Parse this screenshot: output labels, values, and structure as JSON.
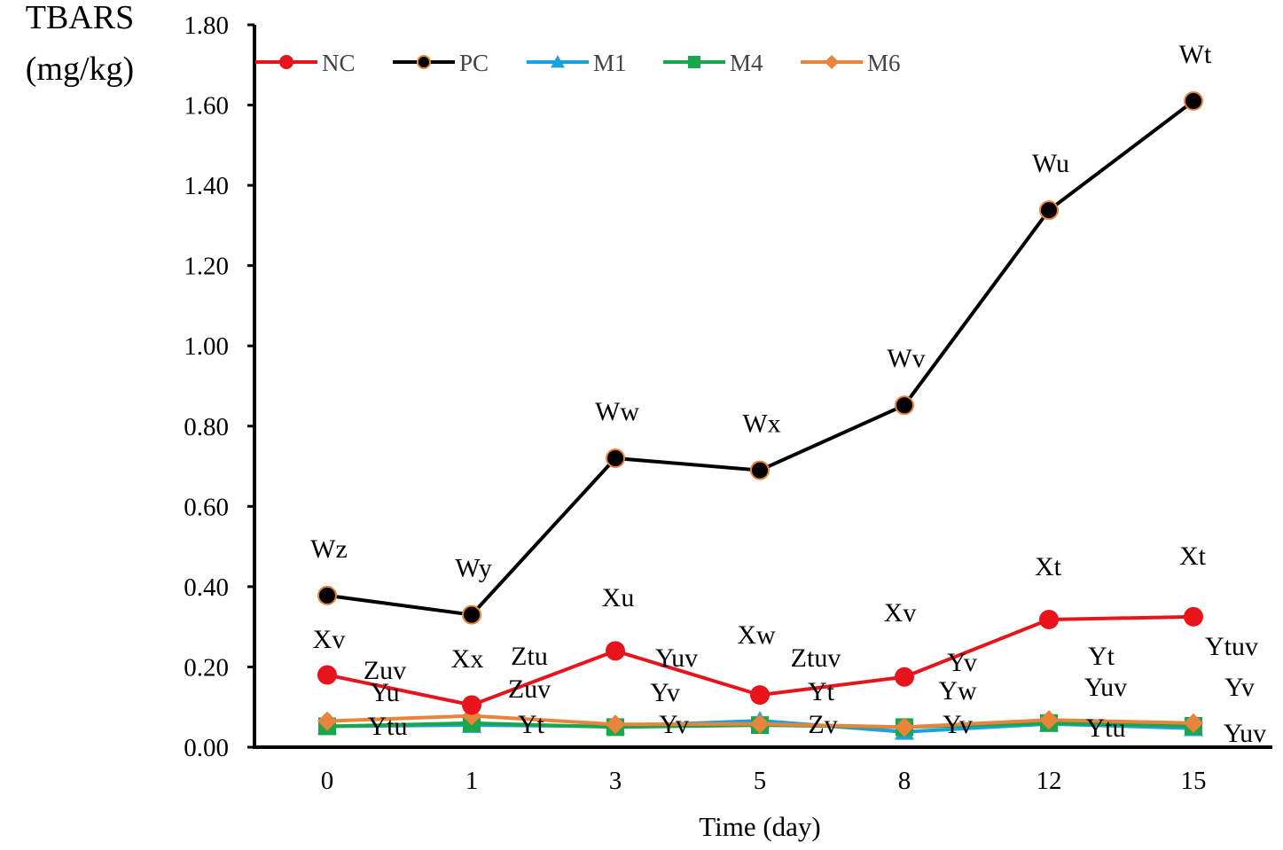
{
  "chart_data": {
    "type": "line",
    "ylabel_line1": "TBARS",
    "ylabel_line2": "(mg/kg)",
    "xlabel": "Time (day)",
    "categories": [
      "0",
      "1",
      "3",
      "5",
      "8",
      "12",
      "15"
    ],
    "ylim": [
      0,
      1.8
    ],
    "yticks": [
      "0.00",
      "0.20",
      "0.40",
      "0.60",
      "0.80",
      "1.00",
      "1.20",
      "1.40",
      "1.60",
      "1.80"
    ],
    "legend_position": "top-left",
    "series": [
      {
        "name": "NC",
        "color": "#e8141c",
        "marker": "circle",
        "values": [
          0.18,
          0.105,
          0.24,
          0.13,
          0.175,
          0.318,
          0.325
        ],
        "labels": [
          "Xv",
          "Xx",
          "Xu",
          "Xw",
          "Xv",
          "Xt",
          "Xt"
        ]
      },
      {
        "name": "PC",
        "color": "#000000",
        "marker": "circle-outlined",
        "values": [
          0.378,
          0.33,
          0.72,
          0.69,
          0.852,
          1.338,
          1.61
        ],
        "labels": [
          "Wz",
          "Wy",
          "Ww",
          "Wx",
          "Wv",
          "Wu",
          "Wt"
        ]
      },
      {
        "name": "M1",
        "color": "#1ba1e2",
        "marker": "triangle",
        "values": [
          0.052,
          0.055,
          0.052,
          0.066,
          0.038,
          0.058,
          0.047
        ],
        "labels": [
          "Ytu",
          "Yt",
          "Yv",
          "Zv",
          "Yv",
          "Ytu",
          "Yuv"
        ]
      },
      {
        "name": "M4",
        "color": "#1aa64b",
        "marker": "square",
        "values": [
          0.052,
          0.06,
          0.05,
          0.055,
          0.05,
          0.06,
          0.053
        ],
        "labels": [
          "Yu",
          "Zuv",
          "Yv",
          "Yt",
          "Yw",
          "Yuv",
          "Yv"
        ]
      },
      {
        "name": "M6",
        "color": "#e8843c",
        "marker": "diamond",
        "values": [
          0.065,
          0.078,
          0.057,
          0.058,
          0.05,
          0.068,
          0.06
        ],
        "labels": [
          "Zuv",
          "Ztu",
          "Yuv",
          "Ztuv",
          "Yv",
          "Yt",
          "Ytuv"
        ]
      }
    ]
  }
}
